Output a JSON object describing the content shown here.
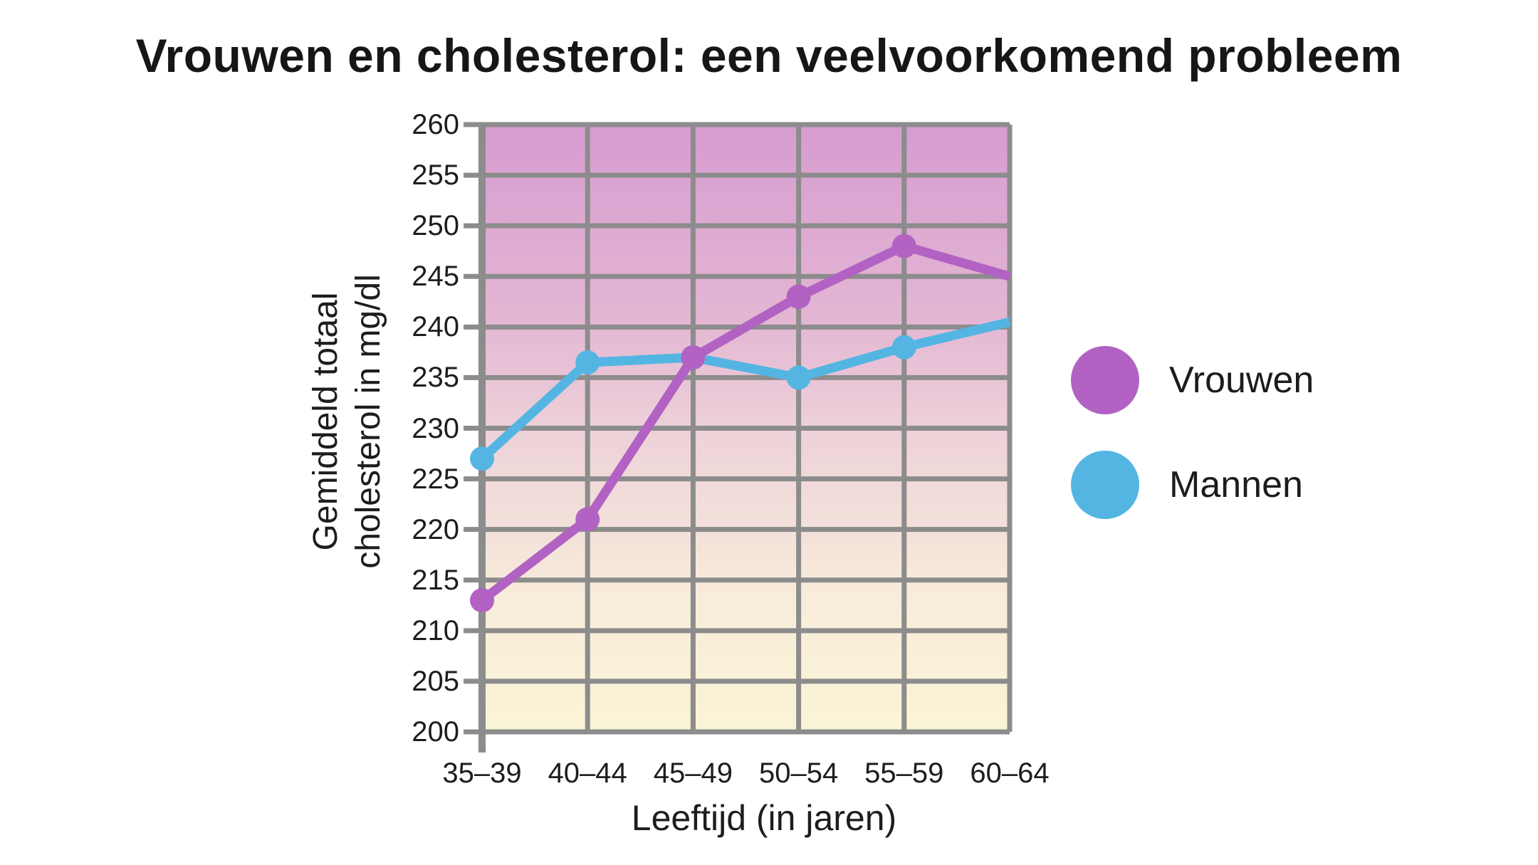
{
  "title": "Vrouwen en cholesterol: een veelvoorkomend probleem",
  "colors": {
    "women": "#b162c3",
    "men": "#54b5e3",
    "grid": "#8c8c8c",
    "axis": "#8c8c8c",
    "text": "#1c1c1c",
    "plot_bg_top": "#d69ccf",
    "plot_bg_upper_mid": "#e2b4d3",
    "plot_bg_mid": "#eed3d9",
    "plot_bg_lower_mid": "#f8ecda",
    "plot_bg_bottom": "#faf4d6"
  },
  "legend": {
    "items": [
      {
        "label": "Vrouwen",
        "color": "#b162c3"
      },
      {
        "label": "Mannen",
        "color": "#54b5e3"
      }
    ]
  },
  "chart_data": {
    "type": "line",
    "title": "Vrouwen en cholesterol: een veelvoorkomend probleem",
    "xlabel": "Leeftijd (in jaren)",
    "ylabel": "Gemiddeld totaal cholesterol in mg/dl",
    "ylabel_lines": [
      "Gemiddeld totaal",
      "cholesterol in mg/dl"
    ],
    "categories": [
      "35–39",
      "40–44",
      "45–49",
      "50–54",
      "55–59",
      "60–64"
    ],
    "series": [
      {
        "name": "Vrouwen",
        "color": "#b162c3",
        "values": [
          213,
          221,
          237,
          243,
          248,
          245
        ]
      },
      {
        "name": "Mannen",
        "color": "#54b5e3",
        "values": [
          227,
          236.5,
          237,
          235,
          238,
          240.5
        ]
      }
    ],
    "ylim": [
      200,
      260
    ],
    "ytick_step": 5,
    "grid": true,
    "legend_position": "right",
    "background": "vertical pink-to-cream gradient"
  }
}
